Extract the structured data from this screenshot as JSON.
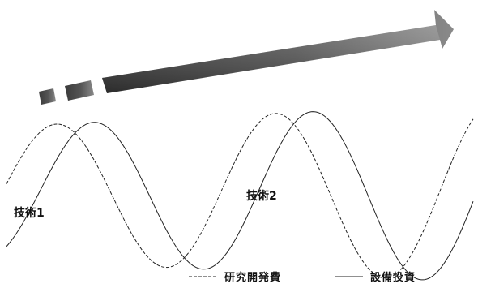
{
  "colors": {
    "arrow_dark": "#3a3a3a",
    "arrow_mid": "#6a6a6a",
    "arrow_light": "#8a8a8a",
    "wave": "#222222"
  },
  "banner": {
    "icon": "progress-arrow-icon",
    "text": ""
  },
  "labels": {
    "tech1": "技術1",
    "tech2": "技術2"
  },
  "legend": {
    "research": "研究開発費",
    "capex": "設備投資"
  }
}
